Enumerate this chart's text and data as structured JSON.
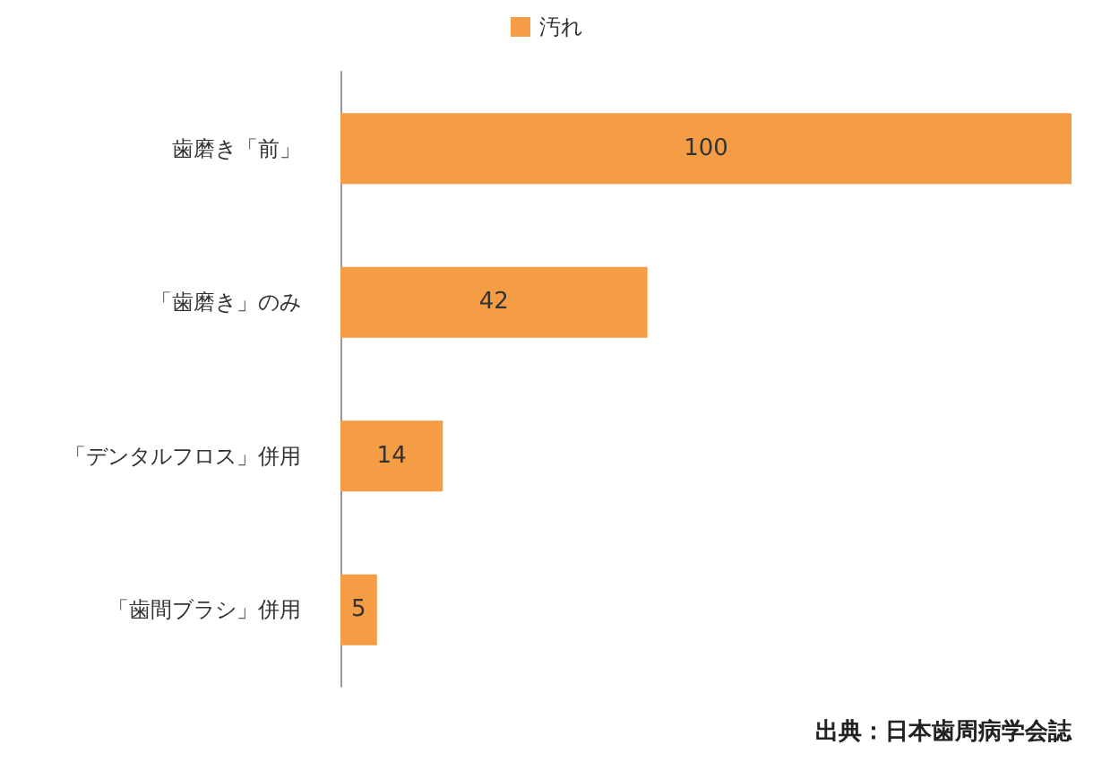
{
  "chart_data": {
    "type": "bar",
    "orientation": "horizontal",
    "categories": [
      "歯磨き「前」",
      "「歯磨き」のみ",
      "「デンタルフロス」併用",
      "「歯間ブラシ」併用"
    ],
    "series": [
      {
        "name": "汚れ",
        "color": "#f59d45",
        "values": [
          100,
          42,
          14,
          5
        ]
      }
    ],
    "data_labels": true,
    "legend": "top",
    "annotations": [
      "出典：日本歯周病学会誌"
    ]
  }
}
